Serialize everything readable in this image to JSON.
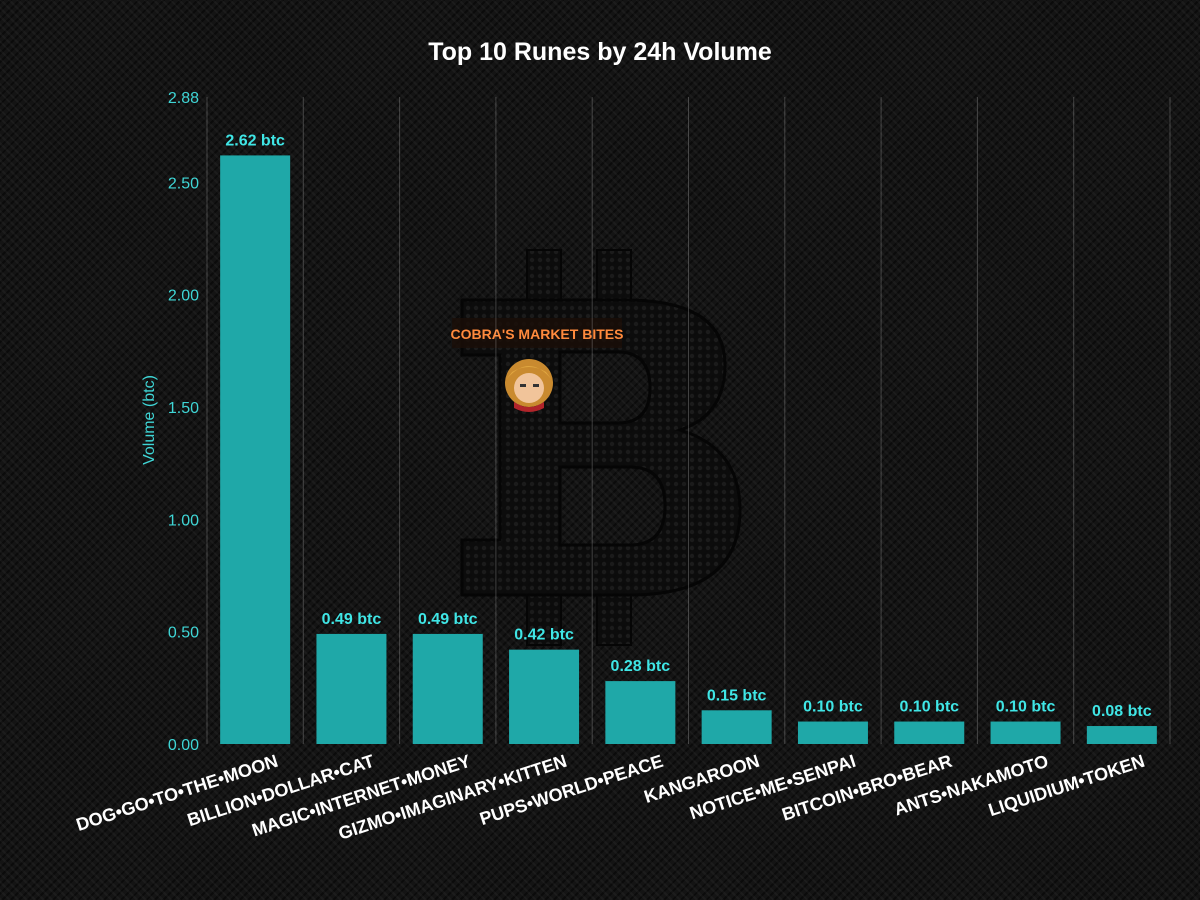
{
  "chart_data": {
    "type": "bar",
    "title": "Top 10 Runes by 24h Volume",
    "xlabel": "",
    "ylabel": "Volume (btc)",
    "ylim": [
      0,
      2.88
    ],
    "yticks": [
      "0.00",
      "0.50",
      "1.00",
      "1.50",
      "2.00",
      "2.50",
      "2.88"
    ],
    "categories": [
      "DOG•GO•TO•THE•MOON",
      "BILLION•DOLLAR•CAT",
      "MAGIC•INTERNET•MONEY",
      "GIZMO•IMAGINARY•KITTEN",
      "PUPS•WORLD•PEACE",
      "KANGAROON",
      "NOTICE•ME•SENPAI",
      "BITCOIN•BRO•BEAR",
      "ANTS•NAKAMOTO",
      "LIQUIDIUM•TOKEN"
    ],
    "values": [
      2.62,
      0.49,
      0.49,
      0.42,
      0.28,
      0.15,
      0.1,
      0.1,
      0.1,
      0.08
    ],
    "data_labels": [
      "2.62 btc",
      "0.49 btc",
      "0.49 btc",
      "0.42 btc",
      "0.28 btc",
      "0.15 btc",
      "0.10 btc",
      "0.10 btc",
      "0.10 btc",
      "0.08 btc"
    ],
    "grid": "vertical",
    "bar_color": "#1fa8a8",
    "label_color": "#3fe6e6"
  },
  "watermark": {
    "brand_text": "COBRA'S MARKET BITES",
    "icon": "bitcoin-logo-icon",
    "avatar_icon": "cobra-avatar-icon",
    "brand_color": "#ff8a3d"
  }
}
